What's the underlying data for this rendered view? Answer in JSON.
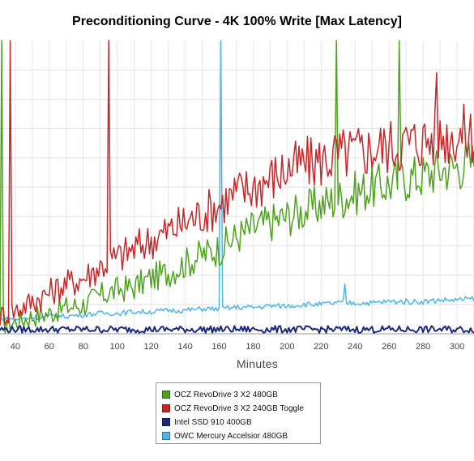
{
  "chart_data": {
    "type": "line",
    "title": "Preconditioning Curve - 4K 100% Write [Max Latency]",
    "xlabel": "Minutes",
    "ylabel": "",
    "x_ticks": [
      40,
      60,
      80,
      100,
      120,
      140,
      160,
      180,
      200,
      220,
      240,
      260,
      280,
      300
    ],
    "xlim": [
      31,
      310
    ],
    "ylim": [
      0,
      10
    ],
    "y_tick_labels_visible": false,
    "grid": true,
    "legend_position": "bottom-center",
    "series": [
      {
        "name": "OCZ RevoDrive 3 X2 480GB",
        "color": "#4ea21e",
        "x": [
          31,
          40,
          50,
          60,
          70,
          80,
          90,
          100,
          110,
          120,
          130,
          140,
          150,
          160,
          170,
          180,
          190,
          200,
          210,
          220,
          230,
          240,
          250,
          260,
          270,
          280,
          290,
          300,
          310
        ],
        "values": [
          0.3,
          0.4,
          0.6,
          0.7,
          0.9,
          1.0,
          1.3,
          1.5,
          1.6,
          1.9,
          2.1,
          2.4,
          2.7,
          2.9,
          3.3,
          3.6,
          3.8,
          4.0,
          4.2,
          4.4,
          4.6,
          4.8,
          5.0,
          5.1,
          5.3,
          5.4,
          5.6,
          5.7,
          5.9
        ],
        "spikes": [
          {
            "x": 32,
            "value": 10
          },
          {
            "x": 229,
            "value": 10
          },
          {
            "x": 266,
            "value": 10
          }
        ]
      },
      {
        "name": "OCZ RevoDrive 3 X2 240GB Toggle",
        "color": "#c8272a",
        "x": [
          31,
          40,
          50,
          60,
          70,
          80,
          90,
          100,
          110,
          120,
          130,
          140,
          150,
          160,
          170,
          180,
          190,
          200,
          210,
          220,
          230,
          240,
          250,
          260,
          270,
          280,
          290,
          300,
          310
        ],
        "values": [
          0.6,
          0.8,
          1.1,
          1.4,
          1.7,
          1.9,
          2.3,
          2.6,
          2.9,
          3.2,
          3.5,
          3.8,
          4.1,
          4.4,
          4.8,
          5.0,
          5.3,
          5.6,
          5.8,
          5.9,
          6.1,
          6.2,
          6.3,
          6.4,
          6.5,
          6.6,
          6.7,
          6.8,
          6.8
        ],
        "spikes": [
          {
            "x": 37,
            "value": 10
          },
          {
            "x": 95,
            "value": 10
          },
          {
            "x": 288,
            "value": 8.9
          }
        ]
      },
      {
        "name": "Intel SSD 910 400GB",
        "color": "#1b2a7a",
        "x": [
          31,
          40,
          50,
          60,
          70,
          80,
          90,
          100,
          110,
          120,
          130,
          140,
          150,
          160,
          170,
          180,
          190,
          200,
          210,
          220,
          230,
          240,
          250,
          260,
          270,
          280,
          290,
          300,
          310
        ],
        "values": [
          0.15,
          0.15,
          0.15,
          0.15,
          0.15,
          0.15,
          0.15,
          0.15,
          0.15,
          0.15,
          0.15,
          0.15,
          0.15,
          0.15,
          0.15,
          0.15,
          0.15,
          0.15,
          0.15,
          0.15,
          0.15,
          0.15,
          0.15,
          0.15,
          0.15,
          0.15,
          0.15,
          0.15,
          0.15
        ]
      },
      {
        "name": "OWC Mercury Accelsior 480GB",
        "color": "#4db6e8",
        "x": [
          31,
          40,
          50,
          60,
          70,
          80,
          90,
          100,
          110,
          120,
          130,
          140,
          150,
          160,
          170,
          180,
          190,
          200,
          210,
          220,
          230,
          240,
          250,
          260,
          270,
          280,
          290,
          300,
          310
        ],
        "values": [
          0.5,
          0.5,
          0.55,
          0.6,
          0.6,
          0.65,
          0.7,
          0.7,
          0.75,
          0.75,
          0.8,
          0.8,
          0.85,
          0.85,
          0.9,
          0.9,
          0.95,
          0.95,
          1.0,
          1.0,
          1.05,
          1.05,
          1.05,
          1.1,
          1.1,
          1.1,
          1.15,
          1.15,
          1.2
        ],
        "spikes": [
          {
            "x": 161,
            "value": 10
          },
          {
            "x": 234,
            "value": 1.7
          }
        ]
      }
    ]
  }
}
